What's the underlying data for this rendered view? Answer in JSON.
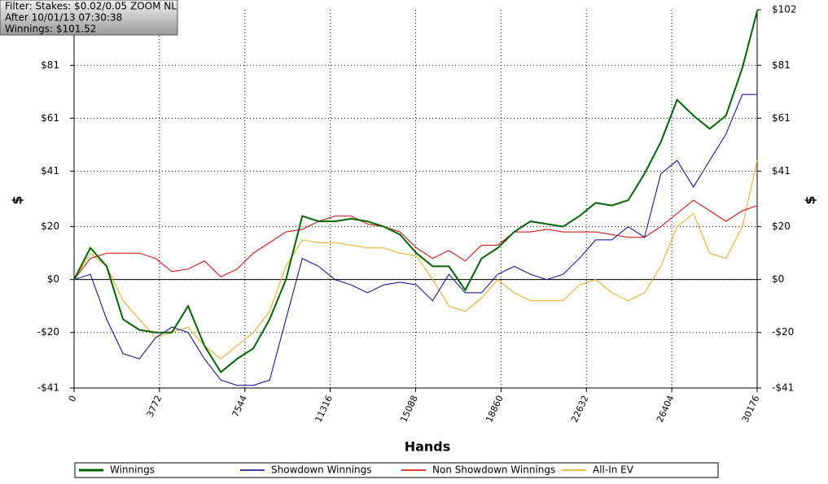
{
  "chart_data": {
    "type": "line",
    "filter_box": [
      "Filter: Stakes: $0.02/0.05 ZOOM NL",
      "After 10/01/13 07:30:38",
      "Winnings: $101.52"
    ],
    "x_label": "Hands",
    "y_label": "$",
    "y2_label": "$",
    "x": [
      0,
      720,
      1440,
      2160,
      2880,
      3600,
      4320,
      5040,
      5760,
      6480,
      7200,
      7920,
      8640,
      9360,
      10080,
      10800,
      11520,
      12240,
      12960,
      13680,
      14400,
      15120,
      15840,
      16560,
      17280,
      18000,
      18720,
      19440,
      20160,
      20880,
      21600,
      22320,
      23040,
      23760,
      24480,
      25200,
      25920,
      26640,
      27360,
      28080,
      28800,
      29520,
      30176
    ],
    "series": [
      {
        "name": "Winnings",
        "color": "#006400",
        "values": [
          0,
          12,
          5,
          -15,
          -19,
          -20,
          -20,
          -10,
          -25,
          -35,
          -30,
          -26,
          -15,
          0,
          24,
          22,
          22,
          23,
          22,
          20,
          17,
          10,
          5,
          5,
          -4,
          8,
          12,
          18,
          22,
          21,
          20,
          24,
          29,
          28,
          30,
          40,
          52,
          68,
          62,
          57,
          62,
          80,
          101.52
        ]
      },
      {
        "name": "Showdown Winnings",
        "color": "#00008b",
        "values": [
          0,
          2,
          -15,
          -28,
          -30,
          -22,
          -18,
          -20,
          -30,
          -38,
          -40,
          -40,
          -38,
          -15,
          8,
          5,
          0,
          -2,
          -5,
          -2,
          -1,
          -2,
          -8,
          2,
          -5,
          -5,
          2,
          5,
          2,
          0,
          2,
          8,
          15,
          15,
          20,
          16,
          40,
          45,
          35,
          45,
          55,
          70,
          70
        ]
      },
      {
        "name": "Non Showdown Winnings",
        "color": "#d40000",
        "values": [
          0,
          8,
          10,
          10,
          10,
          8,
          3,
          4,
          7,
          1,
          4,
          10,
          14,
          18,
          19,
          22,
          24,
          24,
          21,
          20,
          18,
          12,
          8,
          11,
          7,
          13,
          13,
          18,
          18,
          19,
          18,
          18,
          18,
          17,
          16,
          16,
          20,
          25,
          30,
          26,
          22,
          26,
          28
        ]
      },
      {
        "name": "All-In EV",
        "color": "#e6a817",
        "values": [
          0,
          10,
          5,
          -8,
          -15,
          -22,
          -20,
          -18,
          -25,
          -30,
          -25,
          -20,
          -12,
          5,
          15,
          14,
          14,
          13,
          12,
          12,
          10,
          9,
          0,
          -10,
          -12,
          -7,
          0,
          -5,
          -8,
          -8,
          -8,
          -2,
          0,
          -5,
          -8,
          -5,
          5,
          20,
          25,
          10,
          8,
          20,
          45
        ]
      }
    ],
    "xlim": [
      0,
      30176
    ],
    "xticks": [
      0,
      3772,
      7544,
      11316,
      15088,
      18860,
      22632,
      26404,
      30176
    ],
    "ylim": [
      -41,
      102
    ],
    "yticks": [
      {
        "value": -41,
        "label": "-$41"
      },
      {
        "value": -20,
        "label": "-$20"
      },
      {
        "value": 0,
        "label": "$0"
      },
      {
        "value": 20,
        "label": "$20"
      },
      {
        "value": 41,
        "label": "$41"
      },
      {
        "value": 61,
        "label": "$61"
      },
      {
        "value": 81,
        "label": "$81"
      }
    ],
    "y2lim": [
      -41,
      102
    ],
    "y2ticks": [
      {
        "value": -41,
        "label": "-$41"
      },
      {
        "value": -20,
        "label": "-$20"
      },
      {
        "value": 0,
        "label": "$0"
      },
      {
        "value": 20,
        "label": "$20"
      },
      {
        "value": 41,
        "label": "$41"
      },
      {
        "value": 61,
        "label": "$61"
      },
      {
        "value": 81,
        "label": "$81"
      },
      {
        "value": 102,
        "label": "$102"
      }
    ],
    "grid": true
  }
}
